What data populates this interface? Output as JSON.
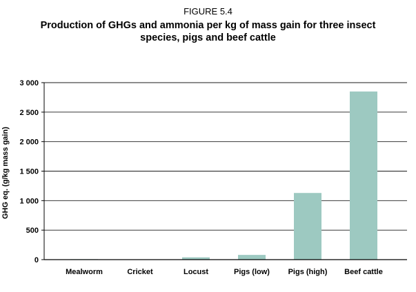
{
  "figure": {
    "label": "FIGURE 5.4",
    "title": "Production of GHGs and ammonia per kg of mass gain for three insect species, pigs and beef cattle"
  },
  "colors": {
    "bar": "#9dc9c1",
    "grid": "#1a1a1a",
    "axis": "#000000"
  },
  "chart_data": {
    "type": "bar",
    "title": "Production of GHGs and ammonia per kg of mass gain for three insect species, pigs and beef cattle",
    "xlabel": "",
    "ylabel": "GHG eq. (g/kg mass gain)",
    "categories": [
      "Mealworm",
      "Cricket",
      "Locust",
      "Pigs (low)",
      "Pigs (high)",
      "Beef cattle"
    ],
    "values": [
      8,
      2,
      39,
      80,
      1130,
      2850
    ],
    "ylim": [
      0,
      3000
    ],
    "yticks": [
      0,
      500,
      1000,
      1500,
      2000,
      2500,
      3000
    ],
    "ytick_labels": [
      "0",
      "500",
      "1 000",
      "1 500",
      "2 000",
      "2 500",
      "3 000"
    ],
    "grid": true,
    "legend": "none"
  }
}
